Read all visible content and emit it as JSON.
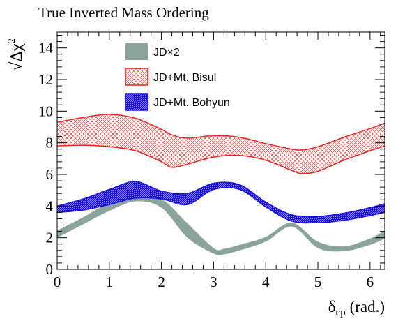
{
  "chart_data": {
    "type": "area",
    "title": "True Inverted Mass Ordering",
    "xlabel": {
      "main": "δ",
      "sub": "cp",
      "unit": " (rad.)"
    },
    "ylabel": {
      "main": "Δχ",
      "sup": "2",
      "root": "√"
    },
    "xlim": [
      0,
      6.283
    ],
    "ylim": [
      0,
      15
    ],
    "xticks": [
      {
        "v": 0,
        "label": "0"
      },
      {
        "v": 1,
        "label": "1"
      },
      {
        "v": 2,
        "label": "2"
      },
      {
        "v": 3,
        "label": "3"
      },
      {
        "v": 4,
        "label": "4"
      },
      {
        "v": 5,
        "label": "5"
      },
      {
        "v": 6,
        "label": "6"
      }
    ],
    "yticks": [
      {
        "v": 0,
        "label": "0"
      },
      {
        "v": 2,
        "label": "2"
      },
      {
        "v": 4,
        "label": "4"
      },
      {
        "v": 6,
        "label": "6"
      },
      {
        "v": 8,
        "label": "8"
      },
      {
        "v": 10,
        "label": "10"
      },
      {
        "v": 12,
        "label": "12"
      },
      {
        "v": 14,
        "label": "14"
      }
    ],
    "grid": false,
    "legend_position": "top-left",
    "series": [
      {
        "name": "JD×2",
        "color": "#8aa39d",
        "style": "solid",
        "x": [
          0,
          0.5,
          1.0,
          1.5,
          2.0,
          2.5,
          3.0,
          3.2,
          3.5,
          4.0,
          4.5,
          5.0,
          5.5,
          6.0,
          6.283
        ],
        "upper": [
          2.45,
          3.3,
          4.2,
          4.65,
          4.45,
          2.9,
          1.35,
          1.3,
          1.55,
          2.05,
          2.95,
          1.75,
          1.45,
          1.95,
          2.45
        ],
        "lower": [
          2.0,
          2.85,
          3.7,
          4.3,
          3.9,
          2.0,
          1.0,
          0.95,
          1.2,
          1.75,
          2.7,
          1.35,
          1.15,
          1.55,
          1.95
        ]
      },
      {
        "name": "JD+Mt. Bisul",
        "color": "#e8241e",
        "style": "crosshatch",
        "x": [
          0,
          0.5,
          1.0,
          1.5,
          2.0,
          2.2,
          2.5,
          3.0,
          3.5,
          4.0,
          4.5,
          4.7,
          5.0,
          5.5,
          6.0,
          6.283
        ],
        "upper": [
          9.3,
          9.6,
          9.8,
          9.55,
          8.85,
          8.5,
          8.3,
          8.45,
          8.35,
          7.95,
          7.6,
          7.55,
          7.75,
          8.35,
          8.9,
          9.25
        ],
        "lower": [
          7.8,
          7.85,
          7.75,
          7.5,
          6.8,
          6.45,
          6.65,
          7.1,
          7.2,
          6.9,
          6.25,
          6.05,
          6.2,
          6.9,
          7.5,
          7.8
        ]
      },
      {
        "name": "JD+Mt. Bohyun",
        "color": "#1a0fe8",
        "style": "dense-hatch",
        "x": [
          0,
          0.5,
          1.0,
          1.5,
          2.0,
          2.5,
          3.0,
          3.5,
          4.0,
          4.5,
          5.0,
          5.5,
          6.0,
          6.283
        ],
        "upper": [
          4.0,
          4.45,
          5.05,
          5.55,
          4.95,
          4.8,
          5.45,
          5.35,
          4.25,
          3.45,
          3.35,
          3.55,
          3.9,
          4.15
        ],
        "lower": [
          3.6,
          3.75,
          4.1,
          4.5,
          4.45,
          4.1,
          5.05,
          5.05,
          3.95,
          3.05,
          2.95,
          3.1,
          3.4,
          3.6
        ]
      }
    ]
  }
}
